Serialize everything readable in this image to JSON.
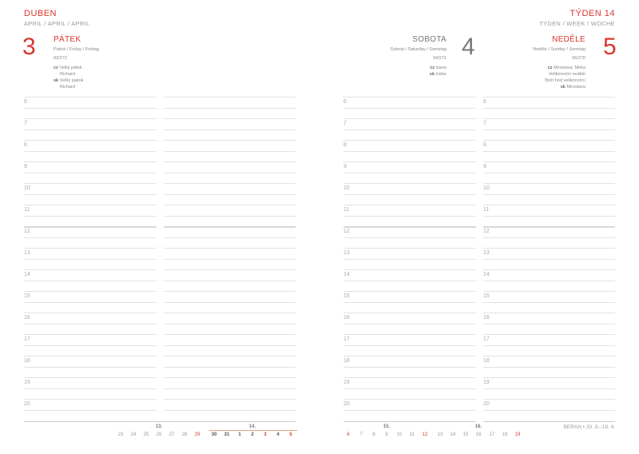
{
  "header": {
    "month": "DUBEN",
    "month_sub": "APRIL / APRIL / APRIL",
    "week": "TÝDEN 14",
    "week_sub": "TÝDEN / WEEK / WOCHE"
  },
  "days": [
    {
      "num": "3",
      "name": "PÁTEK",
      "sub": "Piatok / Friday / Freitag",
      "count": "93/272",
      "cz_label": "cz",
      "cz": "Velký pátek",
      "cz2": "Richard",
      "sk_label": "sk",
      "sk": "Veľký piatok",
      "sk2": "Richard"
    },
    {
      "num": "4",
      "name": "SOBOTA",
      "sub": "Sobota / Saturday / Samstag",
      "count": "94/271",
      "cz_label": "cz",
      "cz": "Ivana",
      "sk_label": "sk",
      "sk": "Izidor"
    },
    {
      "num": "5",
      "name": "NEDĚLE",
      "sub": "Neděle / Sunday / Sonntag",
      "count": "95/270",
      "cz_label": "cz",
      "cz": "Miroslava, Mirka",
      "cz2": "Velikonoční neděle",
      "cz3": "Boží hod velikonoční",
      "sk_label": "sk",
      "sk": "Miroslava"
    }
  ],
  "hours": [
    "6",
    "7",
    "8",
    "9",
    "10",
    "11",
    "12",
    "13",
    "14",
    "15",
    "16",
    "17",
    "18",
    "19",
    "20"
  ],
  "mini_calendar": {
    "weeks": [
      "13.",
      "14.",
      "15.",
      "16."
    ],
    "days_left": [
      "23",
      "24",
      "25",
      "26",
      "27",
      "28",
      "29",
      "30",
      "31",
      "1",
      "2",
      "3",
      "4",
      "5"
    ],
    "days_right": [
      "6",
      "7",
      "8",
      "9",
      "10",
      "11",
      "12",
      "13",
      "14",
      "15",
      "16",
      "17",
      "18",
      "19"
    ]
  },
  "footer": "BERAN • 20. 3.–19. 4.",
  "colors": {
    "accent": "#d8362c",
    "text": "#888888"
  }
}
